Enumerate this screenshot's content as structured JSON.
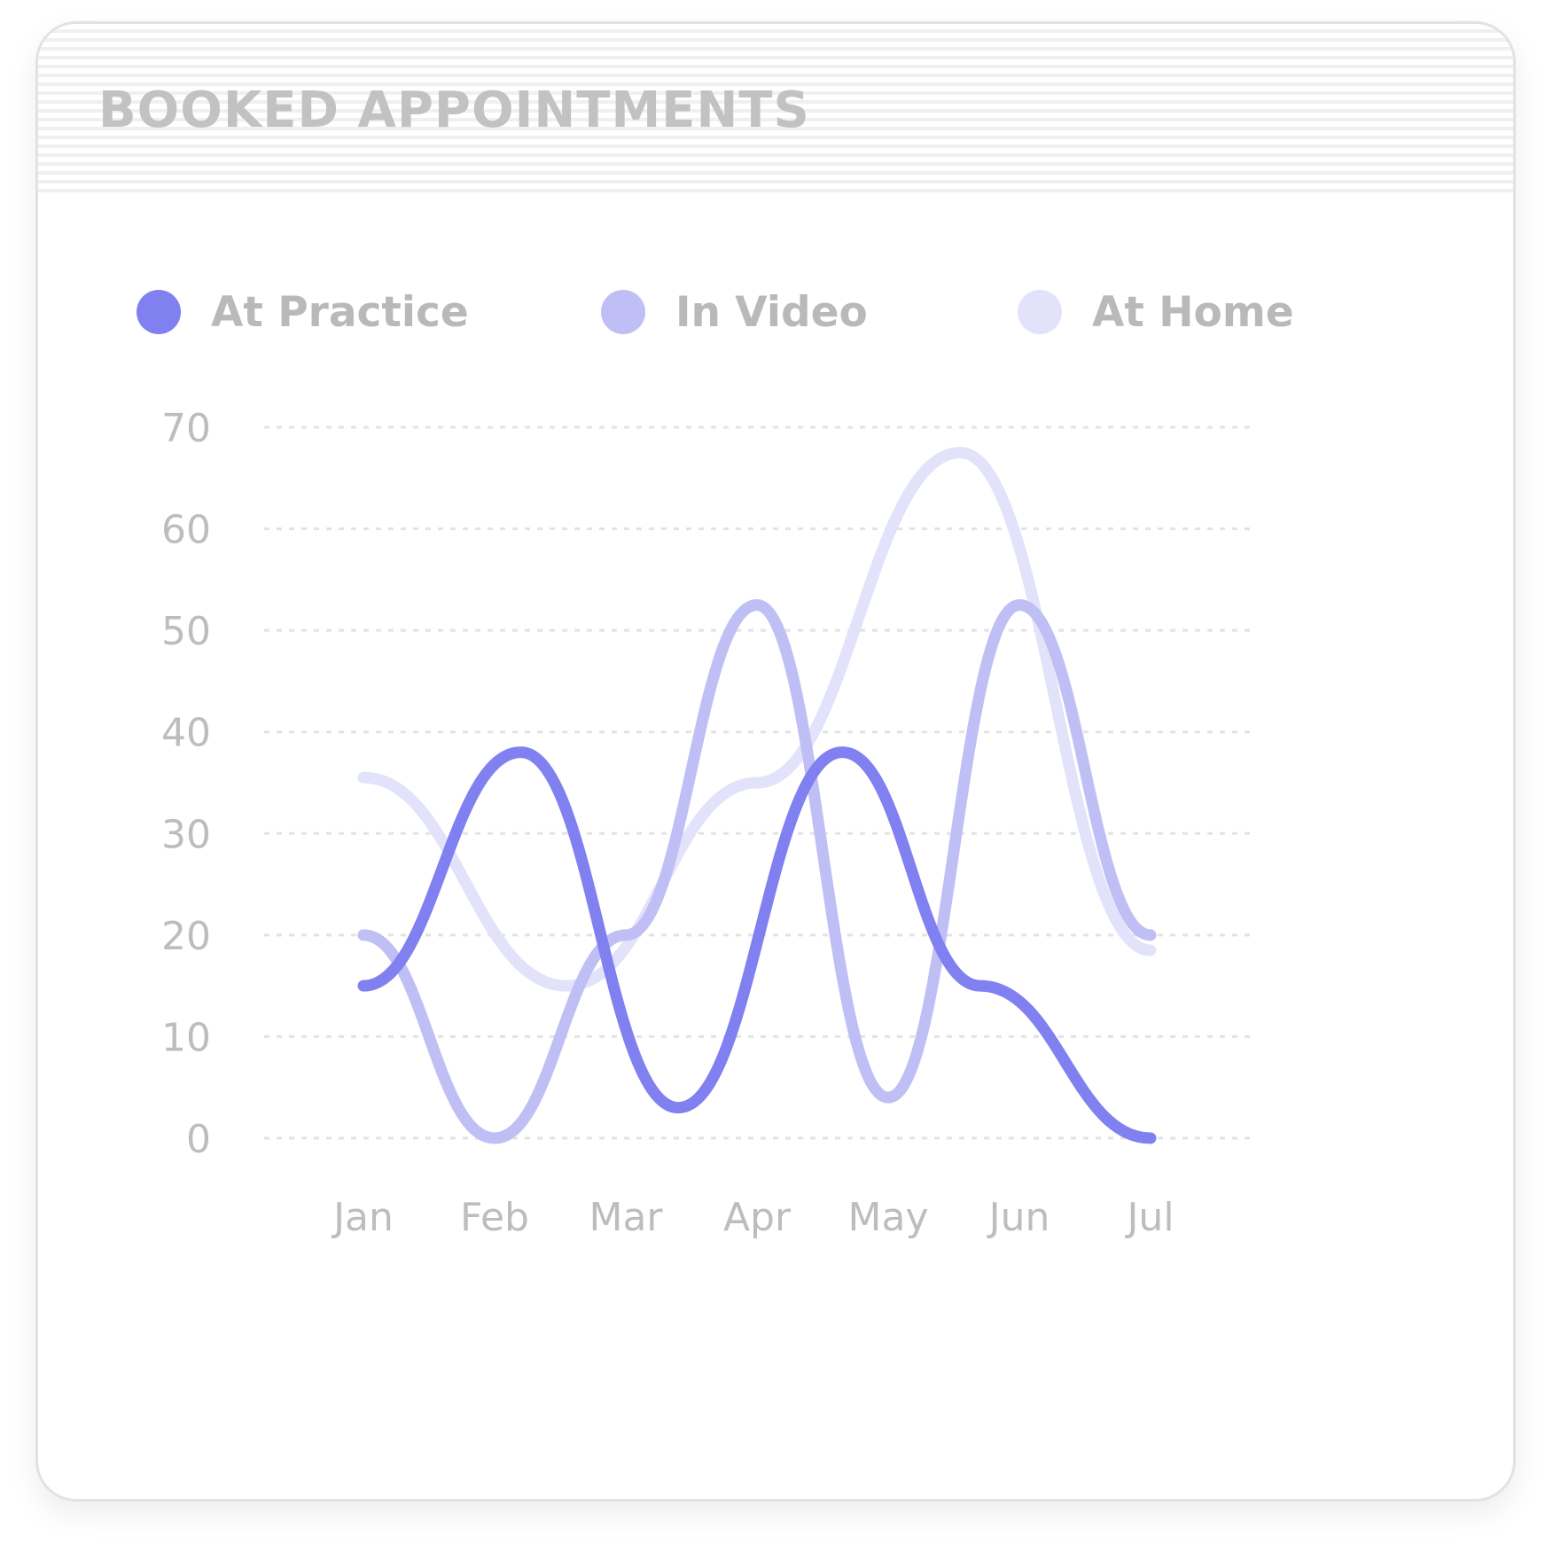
{
  "card": {
    "title": "BOOKED APPOINTMENTS"
  },
  "colors": {
    "at_practice": "#8080f0",
    "in_video": "#c0bff5",
    "at_home": "#e2e2fa",
    "grid": "#e3e3e3",
    "text": "#bdbdbd"
  },
  "chart_data": {
    "type": "line",
    "title": "BOOKED APPOINTMENTS",
    "categories": [
      "Jan",
      "Feb",
      "Mar",
      "Apr",
      "May",
      "Jun",
      "Jul"
    ],
    "ylim": [
      0,
      70
    ],
    "yticks": [
      0,
      10,
      20,
      30,
      40,
      50,
      60,
      70
    ],
    "grid": true,
    "legend": "top",
    "series": [
      {
        "name": "At Home",
        "color": "#e2e2fa",
        "x": [
          0,
          1.55,
          3,
          4.55,
          6
        ],
        "values": [
          35.5,
          15,
          35,
          67.5,
          18.5
        ]
      },
      {
        "name": "In Video",
        "color": "#c0bff5",
        "x": [
          0,
          1,
          2,
          3,
          4,
          5,
          6
        ],
        "values": [
          20,
          0,
          20,
          52.5,
          4,
          52.5,
          20
        ]
      },
      {
        "name": "At Practice",
        "color": "#8080f0",
        "x": [
          0,
          1.2,
          2.4,
          3.65,
          4.7,
          6
        ],
        "values": [
          15,
          38,
          3,
          38,
          15,
          0
        ]
      }
    ]
  }
}
